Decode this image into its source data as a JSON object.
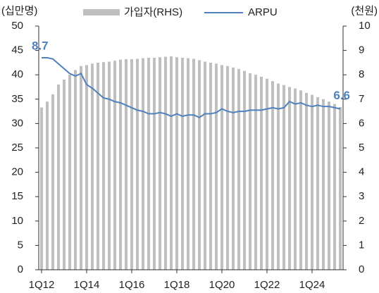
{
  "chart_data": {
    "type": "bar_line",
    "y_label": "(십만명)",
    "y2_label": "(천원)",
    "categories": [
      "1Q12",
      null,
      null,
      null,
      null,
      null,
      null,
      null,
      "1Q14",
      null,
      null,
      null,
      null,
      null,
      null,
      null,
      "1Q16",
      null,
      null,
      null,
      null,
      null,
      null,
      null,
      "1Q18",
      null,
      null,
      null,
      null,
      null,
      null,
      null,
      "1Q20",
      null,
      null,
      null,
      null,
      null,
      null,
      null,
      "1Q22",
      null,
      null,
      null,
      null,
      null,
      null,
      null,
      "1Q24",
      null,
      null,
      null,
      null,
      null
    ],
    "series": [
      {
        "name": "가입자(RHS)",
        "type": "bar",
        "color": "#bfbfbf",
        "values": [
          33.3,
          34.5,
          36,
          38,
          39,
          40,
          41,
          41.8,
          42,
          42.3,
          42.5,
          42.6,
          42.7,
          42.9,
          43.1,
          43.2,
          43.2,
          43.3,
          43.4,
          43.5,
          43.5,
          43.6,
          43.7,
          43.8,
          43.6,
          43.5,
          43.4,
          43.3,
          43,
          42.7,
          42.5,
          42.3,
          42,
          41.8,
          41.5,
          41.2,
          40.8,
          40.3,
          40,
          39.6,
          39.2,
          38.7,
          38.2,
          37.9,
          37.5,
          37.2,
          36.8,
          36.3,
          35.9,
          35.4,
          35,
          34.5,
          34,
          33.4
        ]
      },
      {
        "name": "ARPU",
        "type": "line",
        "axis": "y2",
        "color": "#4f81bd",
        "values": [
          8.7,
          8.7,
          8.65,
          8.45,
          8.25,
          8.05,
          7.95,
          8.05,
          7.6,
          7.45,
          7.25,
          7.05,
          7.0,
          6.9,
          6.85,
          6.75,
          6.65,
          6.55,
          6.5,
          6.4,
          6.4,
          6.45,
          6.4,
          6.3,
          6.4,
          6.3,
          6.35,
          6.35,
          6.25,
          6.4,
          6.4,
          6.45,
          6.6,
          6.5,
          6.45,
          6.5,
          6.5,
          6.55,
          6.55,
          6.55,
          6.6,
          6.65,
          6.6,
          6.65,
          6.9,
          6.8,
          6.85,
          6.75,
          6.7,
          6.75,
          6.7,
          6.7,
          6.65,
          6.6
        ]
      }
    ],
    "ylim": [
      0,
      50
    ],
    "yticks": [
      0,
      5,
      10,
      15,
      20,
      25,
      30,
      35,
      40,
      45,
      50
    ],
    "y2lim": [
      0,
      10
    ],
    "y2ticks": [
      0,
      1,
      2,
      3,
      4,
      5,
      6,
      7,
      8,
      9,
      10
    ]
  }
}
